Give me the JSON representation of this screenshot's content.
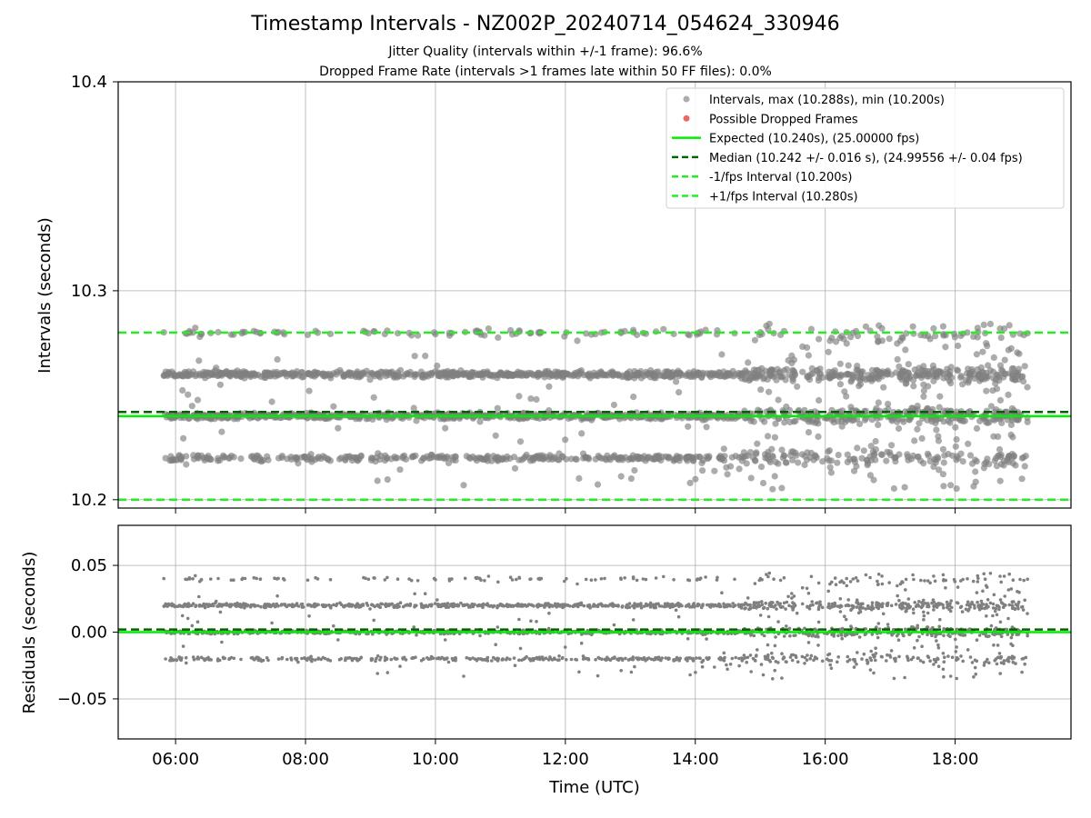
{
  "title": "Timestamp Intervals - NZ002P_20240714_054624_330946",
  "subtitle_jitter": "Jitter Quality (intervals within +/-1 frame): 96.6%",
  "subtitle_dropped": "Dropped Frame Rate (intervals >1 frames late within 50 FF files): 0.0%",
  "colors": {
    "points": "#808080",
    "dropped": "#e8423f",
    "expected": "#00ee00",
    "median": "#006400",
    "fps_bounds": "#22ee22",
    "grid": "#b0b0b0"
  },
  "chart_data": [
    {
      "type": "scatter",
      "ylabel": "Intervals (seconds)",
      "xlabel": "",
      "ylim": [
        10.196,
        10.4
      ],
      "xlim": [
        "05:07",
        "19:47"
      ],
      "yticks": [
        "10.2",
        "10.3",
        "10.4"
      ],
      "ytick_values": [
        10.2,
        10.3,
        10.4
      ],
      "xticks": [
        "06:00",
        "08:00",
        "10:00",
        "12:00",
        "14:00",
        "16:00",
        "18:00"
      ],
      "grid": true,
      "legend_position": "upper-right",
      "legend": [
        "Intervals, max (10.288s), min (10.200s)",
        "Possible Dropped Frames",
        "Expected (10.240s), (25.00000 fps)",
        "Median (10.242 +/- 0.016 s), (24.99556 +/- 0.04 fps)",
        "-1/fps Interval (10.200s)",
        "+1/fps Interval (10.280s)"
      ],
      "time_range": [
        "05:49",
        "19:07"
      ],
      "lines": {
        "expected": 10.24,
        "median": 10.242,
        "minus_1_fps": 10.2,
        "plus_1_fps": 10.28
      },
      "bands": [
        10.22,
        10.24,
        10.26,
        10.28
      ],
      "band_weights": [
        0.14,
        0.38,
        0.37,
        0.06
      ],
      "max": 10.288,
      "min": 10.2
    },
    {
      "type": "scatter",
      "ylabel": "Residuals (seconds)",
      "xlabel": "Time (UTC)",
      "ylim": [
        -0.08,
        0.08
      ],
      "xlim": [
        "05:07",
        "19:47"
      ],
      "yticks": [
        "0.05",
        "0.00",
        "−0.05"
      ],
      "ytick_values": [
        0.05,
        0.0,
        -0.05
      ],
      "xticks": [
        "06:00",
        "08:00",
        "10:00",
        "12:00",
        "14:00",
        "16:00",
        "18:00"
      ],
      "grid": true,
      "time_range": [
        "05:49",
        "19:07"
      ],
      "lines": {
        "zero": 0.0,
        "median": 0.002
      },
      "bands": [
        -0.02,
        0.0,
        0.02,
        0.04
      ]
    }
  ]
}
